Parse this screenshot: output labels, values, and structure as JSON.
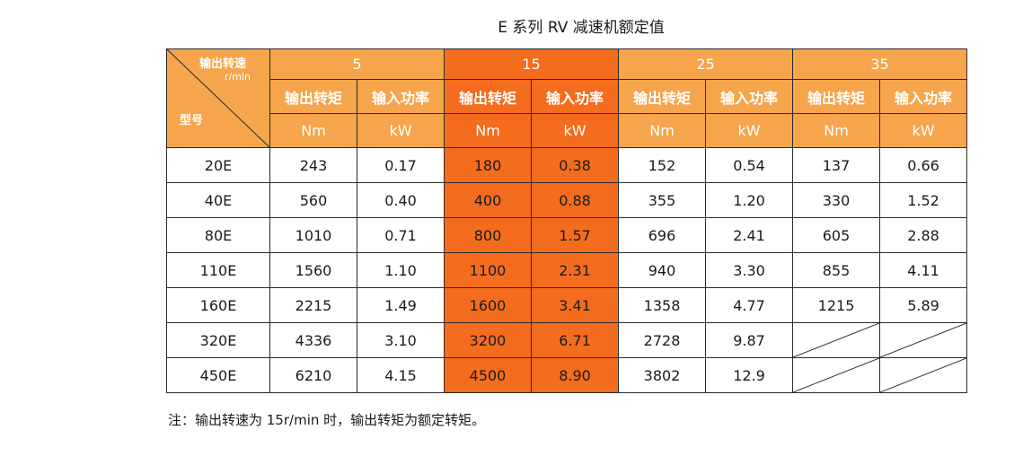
{
  "title": "E 系列 RV 减速机额定值",
  "header": {
    "corner": {
      "speed_label": "输出转速",
      "speed_unit": "r/min",
      "model_label": "型号"
    },
    "speeds": [
      "5",
      "15",
      "25",
      "35"
    ],
    "torque_label": "输出转矩",
    "power_label": "输入功率",
    "torque_unit": "Nm",
    "power_unit": "kW"
  },
  "rows": [
    {
      "model": "20E",
      "cells": [
        "243",
        "0.17",
        "180",
        "0.38",
        "152",
        "0.54",
        "137",
        "0.66"
      ]
    },
    {
      "model": "40E",
      "cells": [
        "560",
        "0.40",
        "400",
        "0.88",
        "355",
        "1.20",
        "330",
        "1.52"
      ]
    },
    {
      "model": "80E",
      "cells": [
        "1010",
        "0.71",
        "800",
        "1.57",
        "696",
        "2.41",
        "605",
        "2.88"
      ]
    },
    {
      "model": "110E",
      "cells": [
        "1560",
        "1.10",
        "1100",
        "2.31",
        "940",
        "3.30",
        "855",
        "4.11"
      ]
    },
    {
      "model": "160E",
      "cells": [
        "2215",
        "1.49",
        "1600",
        "3.41",
        "1358",
        "4.77",
        "1215",
        "5.89"
      ]
    },
    {
      "model": "320E",
      "cells": [
        "4336",
        "3.10",
        "3200",
        "6.71",
        "2728",
        "9.87",
        "",
        ""
      ]
    },
    {
      "model": "450E",
      "cells": [
        "6210",
        "4.15",
        "4500",
        "8.90",
        "3802",
        "12.9",
        "",
        ""
      ]
    }
  ],
  "note": "注：输出转速为 15r/min 时，输出转矩为额定转矩。",
  "colors": {
    "header": "#f6a54d",
    "highlight": "#f46d1e"
  }
}
